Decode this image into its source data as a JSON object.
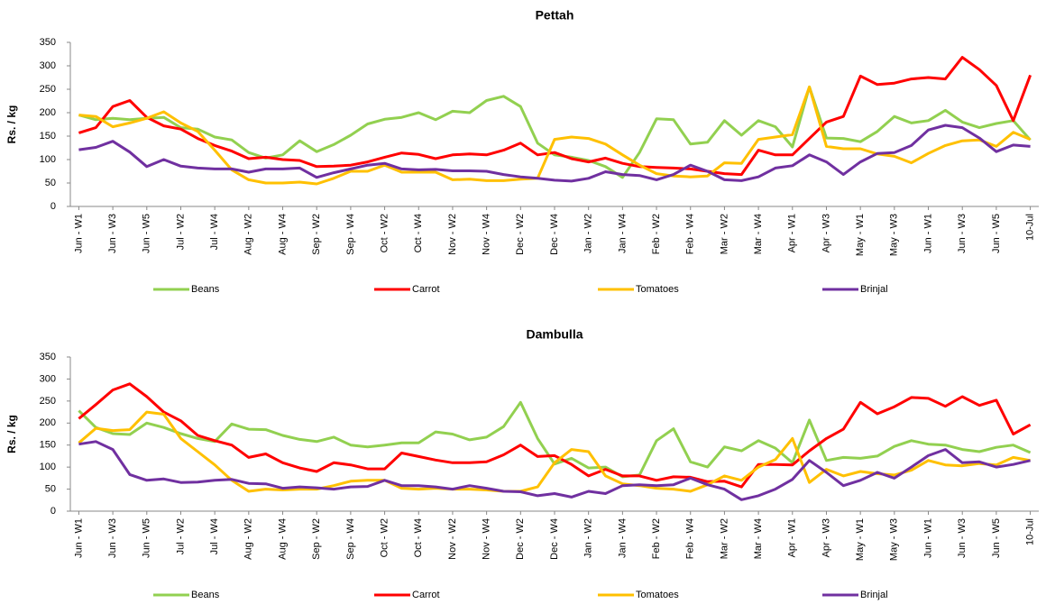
{
  "chart_data": [
    {
      "type": "line",
      "title": "Pettah",
      "y_label": "Rs. / kg",
      "categories": [
        "Jun - W1",
        null,
        "Jun - W3",
        null,
        "Jun - W5",
        null,
        "Jul - W2",
        null,
        "Jul - W4",
        null,
        "Aug - W2",
        null,
        "Aug - W4",
        null,
        "Sep - W2",
        null,
        "Sep - W4",
        null,
        "Oct - W2",
        null,
        "Oct - W4",
        null,
        "Nov - W2",
        null,
        "Nov - W4",
        null,
        "Dec - W2",
        null,
        "Dec - W4",
        null,
        "Jan - W2",
        null,
        "Jan - W4",
        null,
        "Feb - W2",
        null,
        "Feb - W4",
        null,
        "Mar - W2",
        null,
        "Mar - W4",
        null,
        "Apr - W1",
        null,
        "Apr - W3",
        null,
        "May - W1",
        null,
        "May - W3",
        null,
        "Jun - W1",
        null,
        "Jun - W3",
        null,
        "Jun - W5",
        null,
        "10-Jul"
      ],
      "ylim": [
        0,
        350
      ],
      "yticks": [
        0,
        50,
        100,
        150,
        200,
        250,
        300,
        350
      ],
      "legend": "bottom",
      "series": [
        {
          "name": "Beans",
          "color": "#92d050",
          "values": [
            195,
            185,
            188,
            185,
            188,
            190,
            168,
            165,
            148,
            142,
            115,
            103,
            110,
            140,
            117,
            132,
            152,
            176,
            186,
            190,
            200,
            185,
            203,
            200,
            226,
            235,
            213,
            135,
            110,
            105,
            98,
            85,
            62,
            115,
            187,
            185,
            133,
            137,
            183,
            152,
            183,
            170,
            127,
            255,
            146,
            145,
            138,
            160,
            192,
            178,
            183,
            205,
            180,
            168,
            177,
            183,
            142
          ]
        },
        {
          "name": "Carrot",
          "color": "#ff0000",
          "values": [
            157,
            168,
            213,
            226,
            190,
            172,
            165,
            145,
            130,
            118,
            102,
            105,
            100,
            98,
            85,
            86,
            88,
            95,
            105,
            114,
            111,
            102,
            110,
            112,
            110,
            120,
            135,
            110,
            115,
            102,
            95,
            103,
            92,
            85,
            83,
            82,
            80,
            75,
            70,
            68,
            120,
            110,
            110,
            145,
            180,
            192,
            278,
            260,
            263,
            272,
            275,
            272,
            318,
            292,
            258,
            183,
            280
          ]
        },
        {
          "name": "Tomatoes",
          "color": "#ffc000",
          "values": [
            195,
            192,
            170,
            178,
            188,
            202,
            178,
            160,
            120,
            78,
            57,
            50,
            50,
            52,
            48,
            60,
            75,
            75,
            88,
            73,
            73,
            73,
            57,
            58,
            55,
            55,
            58,
            60,
            143,
            148,
            145,
            133,
            110,
            88,
            70,
            65,
            63,
            65,
            93,
            92,
            143,
            148,
            153,
            255,
            128,
            123,
            123,
            112,
            107,
            93,
            113,
            130,
            140,
            142,
            128,
            158,
            143
          ]
        },
        {
          "name": "Brinjal",
          "color": "#7030a0",
          "values": [
            121,
            126,
            139,
            116,
            85,
            100,
            86,
            82,
            80,
            80,
            73,
            80,
            80,
            82,
            62,
            72,
            80,
            88,
            92,
            80,
            78,
            79,
            76,
            76,
            75,
            68,
            63,
            60,
            56,
            54,
            60,
            74,
            68,
            66,
            57,
            68,
            88,
            75,
            57,
            55,
            63,
            82,
            87,
            110,
            95,
            68,
            95,
            113,
            115,
            130,
            163,
            173,
            168,
            146,
            117,
            131,
            128
          ]
        }
      ]
    },
    {
      "type": "line",
      "title": "Dambulla",
      "y_label": "Rs. / kg",
      "categories": [
        "Jun - W1",
        null,
        "Jun - W3",
        null,
        "Jun - W5",
        null,
        "Jul - W2",
        null,
        "Jul - W4",
        null,
        "Aug - W2",
        null,
        "Aug - W4",
        null,
        "Sep - W2",
        null,
        "Sep - W4",
        null,
        "Oct - W2",
        null,
        "Oct - W4",
        null,
        "Nov - W2",
        null,
        "Nov - W4",
        null,
        "Dec - W2",
        null,
        "Dec - W4",
        null,
        "Jan - W2",
        null,
        "Jan - W4",
        null,
        "Feb - W2",
        null,
        "Feb - W4",
        null,
        "Mar - W2",
        null,
        "Mar - W4",
        null,
        "Apr - W1",
        null,
        "Apr - W3",
        null,
        "May - W1",
        null,
        "May - W3",
        null,
        "Jun - W1",
        null,
        "Jun - W3",
        null,
        "Jun - W5",
        null,
        "10-Jul"
      ],
      "ylim": [
        0,
        350
      ],
      "yticks": [
        0,
        50,
        100,
        150,
        200,
        250,
        300,
        350
      ],
      "legend": "bottom",
      "series": [
        {
          "name": "Beans",
          "color": "#92d050",
          "values": [
            228,
            190,
            176,
            174,
            200,
            190,
            176,
            165,
            158,
            198,
            186,
            185,
            172,
            163,
            158,
            168,
            150,
            146,
            150,
            155,
            155,
            180,
            175,
            162,
            168,
            192,
            247,
            165,
            107,
            120,
            98,
            100,
            78,
            82,
            160,
            187,
            112,
            100,
            146,
            137,
            160,
            143,
            110,
            207,
            115,
            122,
            120,
            125,
            147,
            160,
            152,
            150,
            140,
            135,
            145,
            150,
            133
          ]
        },
        {
          "name": "Carrot",
          "color": "#ff0000",
          "values": [
            210,
            242,
            275,
            289,
            260,
            225,
            205,
            172,
            160,
            150,
            122,
            130,
            110,
            98,
            90,
            110,
            105,
            96,
            96,
            132,
            124,
            116,
            110,
            110,
            112,
            128,
            150,
            124,
            126,
            106,
            80,
            95,
            80,
            80,
            70,
            78,
            77,
            67,
            68,
            55,
            106,
            106,
            105,
            137,
            165,
            186,
            247,
            221,
            237,
            258,
            256,
            238,
            260,
            240,
            252,
            175,
            196
          ]
        },
        {
          "name": "Tomatoes",
          "color": "#ffc000",
          "values": [
            155,
            188,
            183,
            185,
            225,
            220,
            165,
            135,
            105,
            70,
            45,
            50,
            48,
            50,
            50,
            58,
            68,
            70,
            70,
            52,
            50,
            52,
            50,
            50,
            48,
            45,
            45,
            55,
            110,
            140,
            135,
            80,
            62,
            58,
            52,
            50,
            45,
            60,
            80,
            70,
            100,
            117,
            165,
            65,
            95,
            80,
            90,
            85,
            82,
            93,
            115,
            105,
            103,
            108,
            105,
            122,
            115
          ]
        },
        {
          "name": "Brinjal",
          "color": "#7030a0",
          "values": [
            152,
            158,
            140,
            83,
            70,
            73,
            65,
            66,
            70,
            72,
            63,
            62,
            52,
            55,
            53,
            50,
            55,
            56,
            70,
            58,
            58,
            55,
            50,
            58,
            52,
            45,
            44,
            35,
            40,
            32,
            45,
            40,
            58,
            60,
            58,
            60,
            75,
            60,
            50,
            26,
            35,
            50,
            72,
            115,
            88,
            58,
            70,
            88,
            75,
            100,
            126,
            140,
            110,
            112,
            100,
            106,
            115
          ]
        }
      ]
    }
  ]
}
